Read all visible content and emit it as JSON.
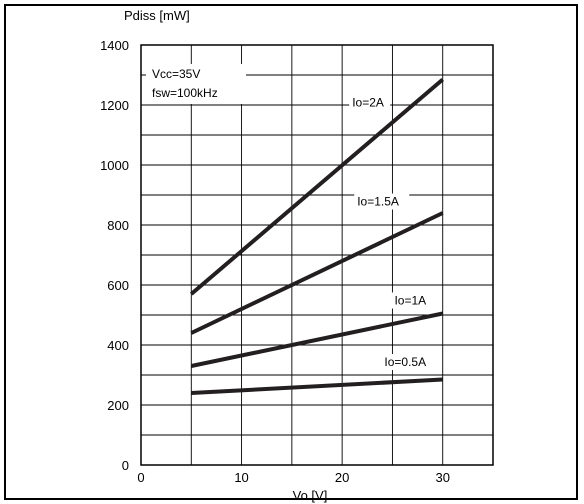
{
  "chart_data": {
    "type": "line",
    "title": "",
    "ylabel": "Pdiss [mW]",
    "xlabel": "Vo [V]",
    "xlim": [
      0,
      35
    ],
    "ylim": [
      0,
      1400
    ],
    "x_ticks": [
      0,
      10,
      20,
      30
    ],
    "y_ticks": [
      0,
      200,
      400,
      600,
      800,
      1000,
      1200,
      1400
    ],
    "grid": true,
    "conditions": [
      "Vcc=35V",
      "fsw=100kHz"
    ],
    "series": [
      {
        "name": "Io=2A",
        "x": [
          5,
          30
        ],
        "y": [
          570,
          1285
        ]
      },
      {
        "name": "Io=1.5A",
        "x": [
          5,
          30
        ],
        "y": [
          440,
          840
        ]
      },
      {
        "name": "Io=1A",
        "x": [
          5,
          30
        ],
        "y": [
          330,
          505
        ]
      },
      {
        "name": "Io=0.5A",
        "x": [
          5,
          30
        ],
        "y": [
          240,
          285
        ]
      }
    ],
    "colors": {
      "line": "#231f20",
      "grid": "#000000",
      "text": "#000000"
    }
  }
}
